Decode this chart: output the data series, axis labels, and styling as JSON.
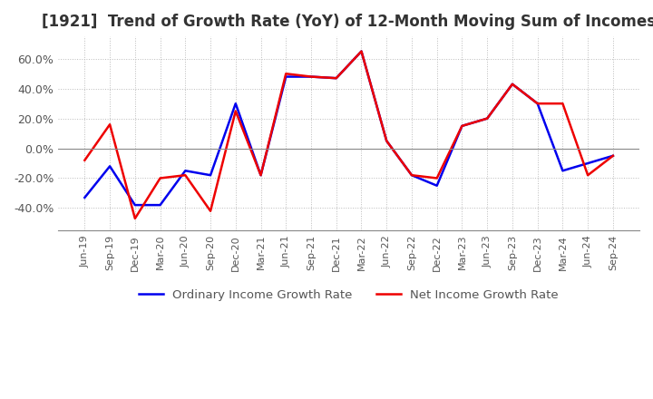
{
  "title": "[1921]  Trend of Growth Rate (YoY) of 12-Month Moving Sum of Incomes",
  "title_fontsize": 12,
  "title_color": "#333333",
  "ylim": [
    -55,
    75
  ],
  "yticks": [
    -40,
    -20,
    0,
    20,
    40,
    60
  ],
  "background_color": "#ffffff",
  "grid_color": "#bbbbbb",
  "line_width": 1.8,
  "ordinary_color": "#0000ee",
  "net_color": "#ee0000",
  "x_labels": [
    "Jun-19",
    "Sep-19",
    "Dec-19",
    "Mar-20",
    "Jun-20",
    "Sep-20",
    "Dec-20",
    "Mar-21",
    "Jun-21",
    "Sep-21",
    "Dec-21",
    "Mar-22",
    "Jun-22",
    "Sep-22",
    "Dec-22",
    "Mar-23",
    "Jun-23",
    "Sep-23",
    "Dec-23",
    "Mar-24",
    "Jun-24",
    "Sep-24"
  ],
  "ordinary_income": [
    -33,
    -12,
    -38,
    -38,
    -15,
    -18,
    30,
    -18,
    48,
    48,
    47,
    65,
    5,
    -18,
    -25,
    15,
    20,
    43,
    30,
    -15,
    -10,
    -5
  ],
  "net_income": [
    -8,
    16,
    -47,
    -20,
    -18,
    -42,
    25,
    -18,
    50,
    48,
    47,
    65,
    5,
    -18,
    -20,
    15,
    20,
    43,
    30,
    30,
    -18,
    -5
  ],
  "legend_ordinary": "Ordinary Income Growth Rate",
  "legend_net": "Net Income Growth Rate"
}
